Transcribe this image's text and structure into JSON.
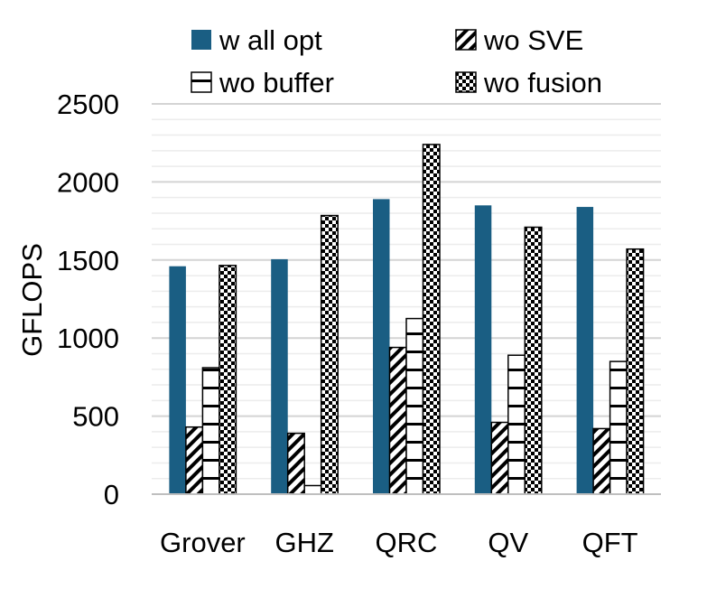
{
  "chart_data": {
    "type": "bar",
    "title": "",
    "xlabel": "",
    "ylabel": "GFLOPS",
    "ylim": [
      0,
      2500
    ],
    "yticks": [
      0,
      500,
      1000,
      1500,
      2000,
      2500
    ],
    "minor_grid_step": 100,
    "grid": true,
    "legend_position": "top",
    "categories": [
      "Grover",
      "GHZ",
      "QRC",
      "QV",
      "QFT"
    ],
    "series": [
      {
        "name": "w all opt",
        "pattern": "solid",
        "color": "#1a5e83",
        "values": [
          1460,
          1505,
          1890,
          1850,
          1840
        ]
      },
      {
        "name": "wo SVE",
        "pattern": "diagonal",
        "color": "#000000",
        "values": [
          430,
          390,
          940,
          460,
          420
        ]
      },
      {
        "name": "wo buffer",
        "pattern": "horizontal",
        "color": "#000000",
        "values": [
          810,
          55,
          1125,
          890,
          850
        ]
      },
      {
        "name": "wo fusion",
        "pattern": "checker",
        "color": "#000000",
        "values": [
          1465,
          1785,
          2240,
          1710,
          1570
        ]
      }
    ]
  }
}
